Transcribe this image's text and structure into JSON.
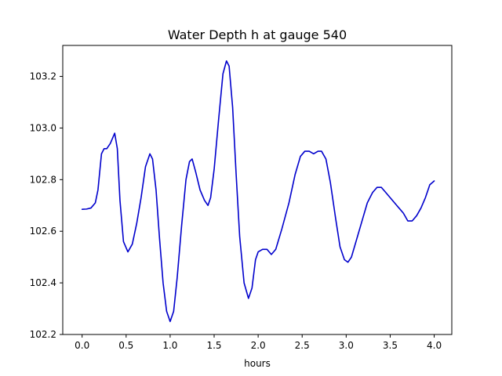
{
  "chart_data": {
    "type": "line",
    "title": "Water Depth h at gauge 540",
    "xlabel": "hours",
    "ylabel": "",
    "xlim": [
      -0.22,
      4.2
    ],
    "ylim": [
      102.2,
      103.32
    ],
    "xticks": [
      0.0,
      0.5,
      1.0,
      1.5,
      2.0,
      2.5,
      3.0,
      3.5,
      4.0
    ],
    "xtick_labels": [
      "0.0",
      "0.5",
      "1.0",
      "1.5",
      "2.0",
      "2.5",
      "3.0",
      "3.5",
      "4.0"
    ],
    "yticks": [
      102.2,
      102.4,
      102.6,
      102.8,
      103.0,
      103.2
    ],
    "ytick_labels": [
      "102.2",
      "102.4",
      "102.6",
      "102.8",
      "103.0",
      "103.2"
    ],
    "grid": false,
    "series": [
      {
        "color": "#0000cc",
        "points": [
          [
            0.0,
            102.685
          ],
          [
            0.05,
            102.686
          ],
          [
            0.1,
            102.69
          ],
          [
            0.15,
            102.71
          ],
          [
            0.18,
            102.76
          ],
          [
            0.22,
            102.9
          ],
          [
            0.25,
            102.92
          ],
          [
            0.28,
            102.92
          ],
          [
            0.32,
            102.94
          ],
          [
            0.37,
            102.98
          ],
          [
            0.4,
            102.92
          ],
          [
            0.43,
            102.72
          ],
          [
            0.47,
            102.56
          ],
          [
            0.52,
            102.52
          ],
          [
            0.57,
            102.55
          ],
          [
            0.62,
            102.63
          ],
          [
            0.67,
            102.73
          ],
          [
            0.72,
            102.85
          ],
          [
            0.77,
            102.9
          ],
          [
            0.8,
            102.88
          ],
          [
            0.84,
            102.76
          ],
          [
            0.88,
            102.57
          ],
          [
            0.92,
            102.4
          ],
          [
            0.96,
            102.29
          ],
          [
            1.0,
            102.25
          ],
          [
            1.04,
            102.29
          ],
          [
            1.08,
            102.42
          ],
          [
            1.13,
            102.62
          ],
          [
            1.18,
            102.8
          ],
          [
            1.22,
            102.87
          ],
          [
            1.25,
            102.88
          ],
          [
            1.29,
            102.83
          ],
          [
            1.34,
            102.76
          ],
          [
            1.39,
            102.72
          ],
          [
            1.43,
            102.7
          ],
          [
            1.46,
            102.73
          ],
          [
            1.5,
            102.84
          ],
          [
            1.55,
            103.03
          ],
          [
            1.6,
            103.21
          ],
          [
            1.64,
            103.26
          ],
          [
            1.67,
            103.24
          ],
          [
            1.71,
            103.08
          ],
          [
            1.75,
            102.82
          ],
          [
            1.79,
            102.58
          ],
          [
            1.84,
            102.4
          ],
          [
            1.89,
            102.34
          ],
          [
            1.93,
            102.38
          ],
          [
            1.97,
            102.49
          ],
          [
            2.0,
            102.52
          ],
          [
            2.05,
            102.53
          ],
          [
            2.1,
            102.53
          ],
          [
            2.15,
            102.51
          ],
          [
            2.2,
            102.53
          ],
          [
            2.27,
            102.61
          ],
          [
            2.35,
            102.71
          ],
          [
            2.42,
            102.82
          ],
          [
            2.48,
            102.89
          ],
          [
            2.53,
            102.91
          ],
          [
            2.58,
            102.91
          ],
          [
            2.63,
            102.9
          ],
          [
            2.68,
            102.91
          ],
          [
            2.72,
            102.91
          ],
          [
            2.77,
            102.88
          ],
          [
            2.82,
            102.79
          ],
          [
            2.88,
            102.65
          ],
          [
            2.93,
            102.54
          ],
          [
            2.98,
            102.49
          ],
          [
            3.02,
            102.48
          ],
          [
            3.06,
            102.5
          ],
          [
            3.12,
            102.57
          ],
          [
            3.18,
            102.64
          ],
          [
            3.24,
            102.71
          ],
          [
            3.3,
            102.75
          ],
          [
            3.35,
            102.77
          ],
          [
            3.4,
            102.77
          ],
          [
            3.45,
            102.75
          ],
          [
            3.5,
            102.73
          ],
          [
            3.55,
            102.71
          ],
          [
            3.6,
            102.69
          ],
          [
            3.65,
            102.67
          ],
          [
            3.7,
            102.64
          ],
          [
            3.75,
            102.64
          ],
          [
            3.8,
            102.66
          ],
          [
            3.85,
            102.69
          ],
          [
            3.9,
            102.73
          ],
          [
            3.95,
            102.78
          ],
          [
            4.0,
            102.795
          ]
        ]
      }
    ]
  }
}
